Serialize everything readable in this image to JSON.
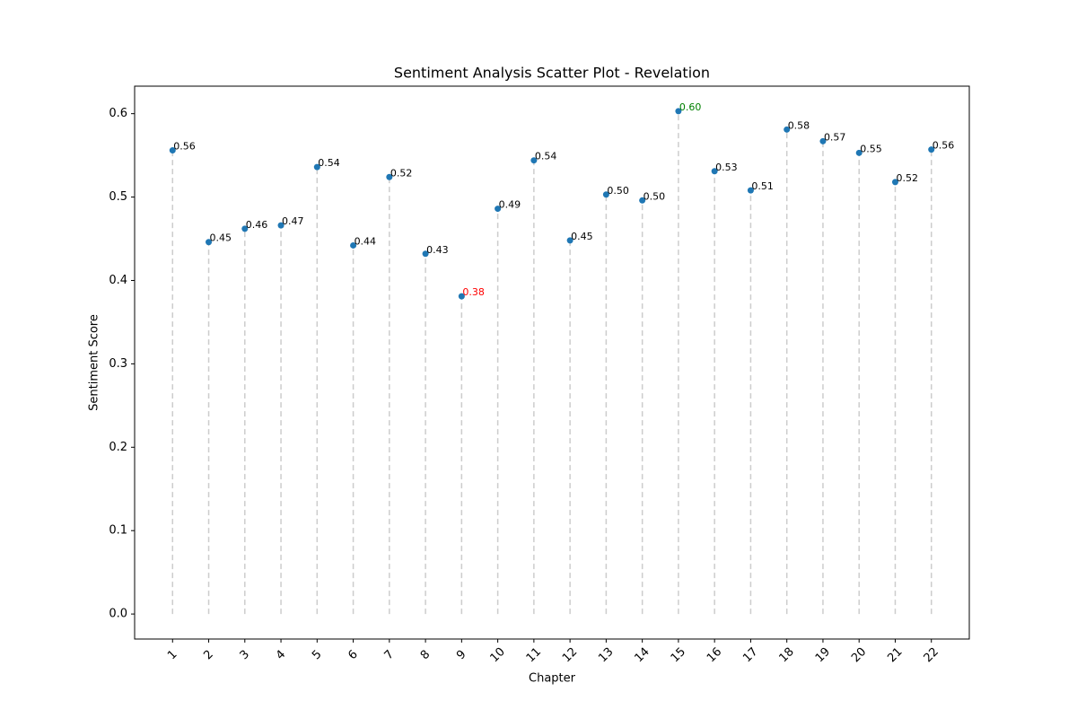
{
  "chart_data": {
    "type": "scatter",
    "title": "Sentiment Analysis Scatter Plot - Revelation",
    "x_label": "Chapter",
    "y_label": "Sentiment Score",
    "x": [
      1,
      2,
      3,
      4,
      5,
      6,
      7,
      8,
      9,
      10,
      11,
      12,
      13,
      14,
      15,
      16,
      17,
      18,
      19,
      20,
      21,
      22
    ],
    "values": [
      0.556,
      0.446,
      0.462,
      0.466,
      0.536,
      0.442,
      0.524,
      0.432,
      0.381,
      0.486,
      0.544,
      0.448,
      0.503,
      0.496,
      0.603,
      0.531,
      0.508,
      0.581,
      0.567,
      0.553,
      0.518,
      0.557
    ],
    "value_labels": [
      "0.56",
      "0.45",
      "0.46",
      "0.47",
      "0.54",
      "0.44",
      "0.52",
      "0.43",
      "0.38",
      "0.49",
      "0.54",
      "0.45",
      "0.50",
      "0.50",
      "0.60",
      "0.53",
      "0.51",
      "0.58",
      "0.57",
      "0.55",
      "0.52",
      "0.56"
    ],
    "color": "#1f77b4",
    "stem_color": "#cccccc",
    "label_color": "#000000",
    "min_label_color": "red",
    "max_label_color": "green",
    "xlim": [
      -0.05,
      23.05
    ],
    "ylim": [
      -0.03,
      0.633
    ],
    "xticks": [
      1,
      2,
      3,
      4,
      5,
      6,
      7,
      8,
      9,
      10,
      11,
      12,
      13,
      14,
      15,
      16,
      17,
      18,
      19,
      20,
      21,
      22
    ],
    "yticks": [
      {
        "value": 0,
        "label": "0.0"
      },
      0.1,
      0.2,
      0.3,
      0.4,
      0.5,
      0.6
    ]
  }
}
